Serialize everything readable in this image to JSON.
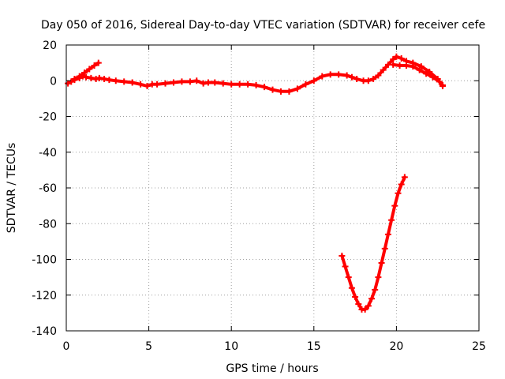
{
  "chart_data": {
    "type": "scatter",
    "title": "Day 050 of 2016, Sidereal Day-to-day VTEC variation (SDTVAR) for receiver cefe",
    "xlabel": "GPS time / hours",
    "ylabel": "SDTVAR / TECUs",
    "xlim": [
      0,
      25
    ],
    "ylim": [
      -140,
      20
    ],
    "xticks": [
      0,
      5,
      10,
      15,
      20,
      25
    ],
    "yticks": [
      20,
      0,
      -20,
      -40,
      -60,
      -80,
      -100,
      -120,
      -140
    ],
    "grid": true,
    "series_color": "#ff0000",
    "series": [
      {
        "name": "main",
        "points": [
          [
            0.1,
            -1.5
          ],
          [
            0.3,
            -0.5
          ],
          [
            0.5,
            0.5
          ],
          [
            0.8,
            1.5
          ],
          [
            1.0,
            2.5
          ],
          [
            1.2,
            2.0
          ],
          [
            1.5,
            1.5
          ],
          [
            1.8,
            1.0
          ],
          [
            2.0,
            1.5
          ],
          [
            2.3,
            1.0
          ],
          [
            2.6,
            0.5
          ],
          [
            3.0,
            0
          ],
          [
            3.5,
            -0.5
          ],
          [
            4.0,
            -1.0
          ],
          [
            4.5,
            -2.0
          ],
          [
            4.9,
            -3.0
          ],
          [
            5.2,
            -2.0
          ],
          [
            5.5,
            -2.0
          ],
          [
            6.0,
            -1.5
          ],
          [
            6.5,
            -1.0
          ],
          [
            7.0,
            -0.5
          ],
          [
            7.5,
            -0.5
          ],
          [
            7.9,
            0
          ],
          [
            8.3,
            -1.5
          ],
          [
            8.6,
            -1.0
          ],
          [
            9.0,
            -1.0
          ],
          [
            9.5,
            -1.5
          ],
          [
            10.0,
            -2.0
          ],
          [
            10.5,
            -2.0
          ],
          [
            11.0,
            -2.0
          ],
          [
            11.5,
            -2.5
          ],
          [
            12.0,
            -3.5
          ],
          [
            12.5,
            -5.0
          ],
          [
            13.0,
            -6.0
          ],
          [
            13.5,
            -6.0
          ],
          [
            14.0,
            -4.5
          ],
          [
            14.5,
            -2.0
          ],
          [
            15.0,
            0
          ],
          [
            15.5,
            2.5
          ],
          [
            16.0,
            3.5
          ],
          [
            16.5,
            3.5
          ],
          [
            17.0,
            3.0
          ],
          [
            17.3,
            2.0
          ],
          [
            17.6,
            1.0
          ],
          [
            18.0,
            0
          ],
          [
            18.3,
            0
          ],
          [
            18.6,
            1.0
          ],
          [
            18.9,
            3.0
          ],
          [
            19.2,
            6.0
          ],
          [
            19.5,
            9.0
          ],
          [
            19.8,
            12.0
          ],
          [
            20.0,
            13.5
          ],
          [
            20.3,
            12.5
          ],
          [
            20.6,
            11.0
          ],
          [
            21.0,
            10.0
          ],
          [
            21.5,
            8.0
          ],
          [
            22.0,
            5.0
          ],
          [
            22.5,
            1.0
          ],
          [
            22.8,
            -3.0
          ]
        ]
      },
      {
        "name": "start-spike",
        "points": [
          [
            0.5,
            1.0
          ],
          [
            0.8,
            2.5
          ],
          [
            1.1,
            4.5
          ],
          [
            1.4,
            6.5
          ],
          [
            1.7,
            8.5
          ],
          [
            1.95,
            10.0
          ]
        ]
      },
      {
        "name": "upper-branch",
        "points": [
          [
            19.8,
            9.0
          ],
          [
            20.2,
            8.5
          ],
          [
            20.6,
            8.5
          ],
          [
            21.0,
            8.0
          ],
          [
            21.4,
            6.0
          ],
          [
            21.8,
            4.0
          ],
          [
            22.2,
            2.0
          ],
          [
            22.6,
            -0.5
          ],
          [
            22.8,
            -2.5
          ]
        ]
      },
      {
        "name": "lower-arc",
        "points": [
          [
            16.7,
            -98
          ],
          [
            16.9,
            -104
          ],
          [
            17.1,
            -110
          ],
          [
            17.3,
            -116
          ],
          [
            17.5,
            -121
          ],
          [
            17.7,
            -125
          ],
          [
            17.9,
            -128
          ],
          [
            18.1,
            -128
          ],
          [
            18.3,
            -126
          ],
          [
            18.5,
            -122
          ],
          [
            18.7,
            -117
          ],
          [
            18.9,
            -110
          ],
          [
            19.1,
            -102
          ],
          [
            19.3,
            -94
          ],
          [
            19.5,
            -86
          ],
          [
            19.7,
            -78
          ],
          [
            19.9,
            -70
          ],
          [
            20.1,
            -63
          ],
          [
            20.3,
            -58
          ],
          [
            20.5,
            -54
          ]
        ]
      }
    ]
  }
}
